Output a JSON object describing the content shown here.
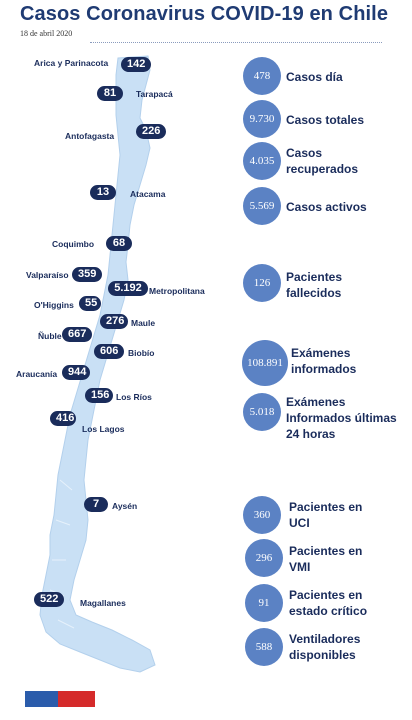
{
  "header": {
    "title": "Casos Coronavirus COVID-19 en Chile",
    "date": "18 de abril 2020"
  },
  "colors": {
    "title": "#1f3b73",
    "pill": "#1a2c5b",
    "circle": "#5b82c4",
    "map": "#c9e0f5",
    "flag_blue": "#2b5cab",
    "flag_red": "#d52b2b"
  },
  "regions": [
    {
      "name": "Arica y Parinacota",
      "cases": "142"
    },
    {
      "name": "Tarapacá",
      "cases": "81"
    },
    {
      "name": "Antofagasta",
      "cases": "226"
    },
    {
      "name": "Atacama",
      "cases": "13"
    },
    {
      "name": "Coquimbo",
      "cases": "68"
    },
    {
      "name": "Valparaíso",
      "cases": "359"
    },
    {
      "name": "Metropolitana",
      "cases": "5.192"
    },
    {
      "name": "O'Higgins",
      "cases": "55"
    },
    {
      "name": "Maule",
      "cases": "276"
    },
    {
      "name": "Ñuble",
      "cases": "667"
    },
    {
      "name": "Biobío",
      "cases": "606"
    },
    {
      "name": "Araucanía",
      "cases": "944"
    },
    {
      "name": "Los Ríos",
      "cases": "156"
    },
    {
      "name": "Los Lagos",
      "cases": "416"
    },
    {
      "name": "Aysén",
      "cases": "7"
    },
    {
      "name": "Magallanes",
      "cases": "522"
    }
  ],
  "stats": [
    {
      "value": "478",
      "label": "Casos día"
    },
    {
      "value": "9.730",
      "label": "Casos totales"
    },
    {
      "value": "4.035",
      "label": "Casos recuperados"
    },
    {
      "value": "5.569",
      "label": "Casos activos"
    },
    {
      "value": "126",
      "label": "Pacientes fallecidos"
    },
    {
      "value": "108.891",
      "label": "Exámenes informados"
    },
    {
      "value": "5.018",
      "label": "Exámenes Informados últimas 24 horas"
    },
    {
      "value": "360",
      "label": "Pacientes en UCI"
    },
    {
      "value": "296",
      "label": "Pacientes en VMI"
    },
    {
      "value": "91",
      "label": "Pacientes en estado crítico"
    },
    {
      "value": "588",
      "label": "Ventiladores disponibles"
    }
  ]
}
